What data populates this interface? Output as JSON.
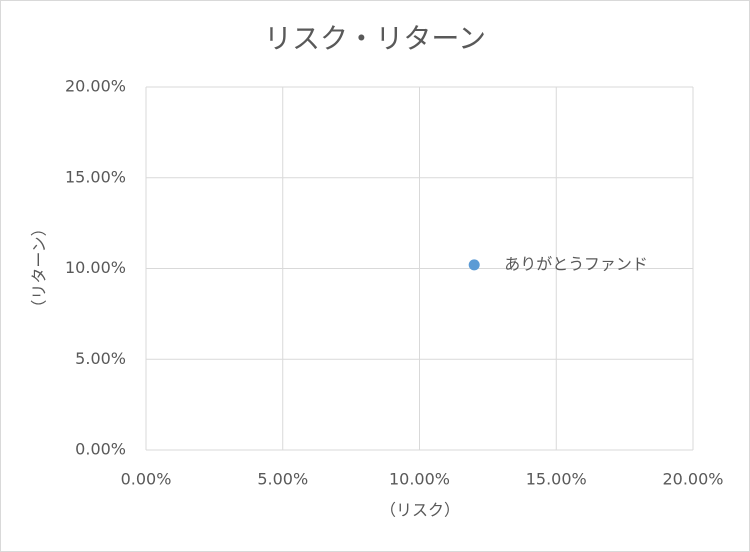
{
  "chart_data": {
    "type": "scatter",
    "title": "リスク・リターン",
    "x_label": "（リスク）",
    "y_label": "（リターン）",
    "series": [
      {
        "name": "ありがとうファンド",
        "color": "#5b9bd5",
        "x": [
          12.0
        ],
        "values": [
          10.2
        ]
      }
    ],
    "xlim": [
      0,
      20
    ],
    "ylim": [
      0,
      20
    ],
    "xticks": [
      {
        "value": 0,
        "label": "0.00%"
      },
      {
        "value": 5,
        "label": "5.00%"
      },
      {
        "value": 10,
        "label": "10.00%"
      },
      {
        "value": 15,
        "label": "15.00%"
      },
      {
        "value": 20,
        "label": "20.00%"
      }
    ],
    "yticks": [
      {
        "value": 0,
        "label": "0.00%"
      },
      {
        "value": 5,
        "label": "5.00%"
      },
      {
        "value": 10,
        "label": "10.00%"
      },
      {
        "value": 15,
        "label": "15.00%"
      },
      {
        "value": 20,
        "label": "20.00%"
      }
    ],
    "grid": true
  }
}
